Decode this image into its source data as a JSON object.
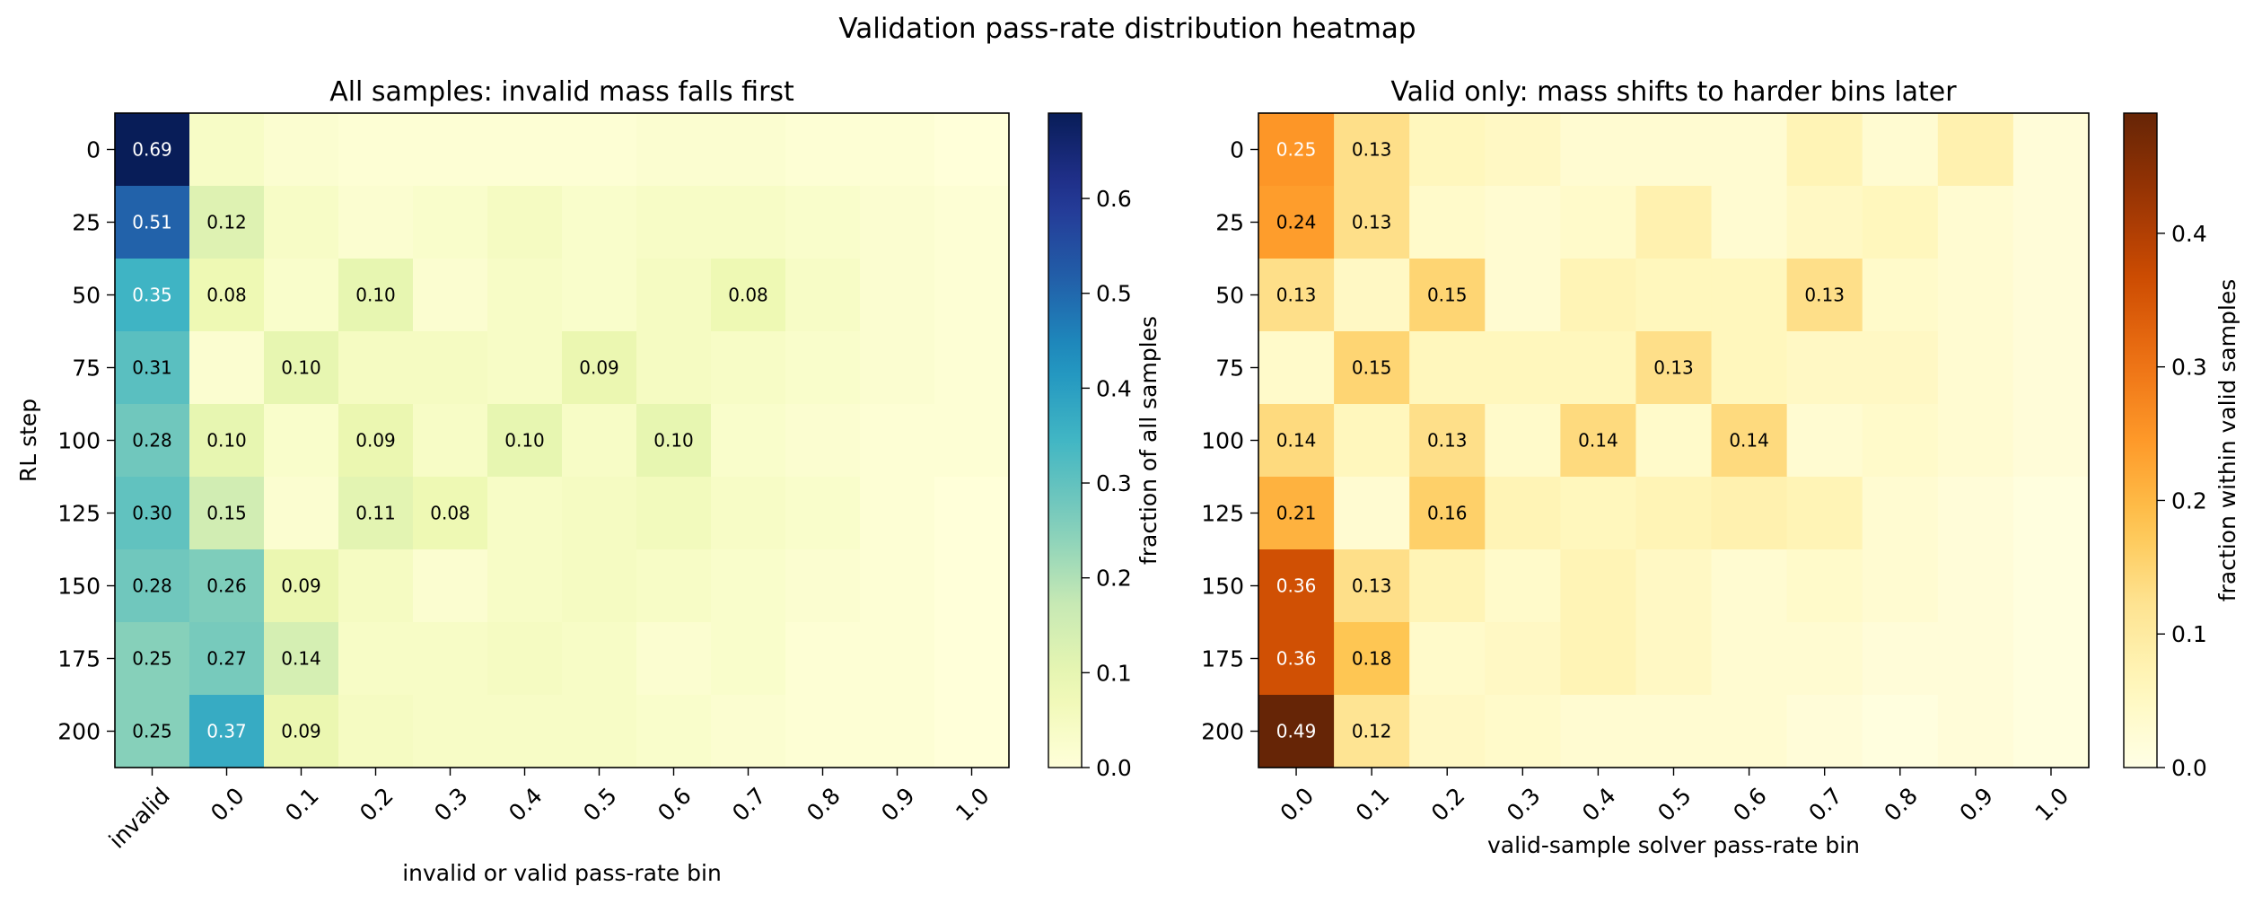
{
  "figure": {
    "suptitle": "Validation pass-rate distribution heatmap"
  },
  "chart_data": [
    {
      "type": "heatmap",
      "title": "All samples: invalid mass falls first",
      "xlabel": "invalid or valid pass-rate bin",
      "ylabel": "RL step",
      "x_categories": [
        "invalid",
        "0.0",
        "0.1",
        "0.2",
        "0.3",
        "0.4",
        "0.5",
        "0.6",
        "0.7",
        "0.8",
        "0.9",
        "1.0"
      ],
      "y_categories": [
        "0",
        "25",
        "50",
        "75",
        "100",
        "125",
        "150",
        "175",
        "200"
      ],
      "colormap": "YlGnBu",
      "colorbar": {
        "label": "fraction of all samples",
        "min": 0.0,
        "max": 0.69,
        "ticks": [
          "0.0",
          "0.1",
          "0.2",
          "0.3",
          "0.4",
          "0.5",
          "0.6"
        ]
      },
      "label_threshold": 0.075,
      "values": [
        [
          0.69,
          0.04,
          0.02,
          0.01,
          0.01,
          0.01,
          0.01,
          0.02,
          0.02,
          0.01,
          0.01,
          0.0
        ],
        [
          0.51,
          0.12,
          0.04,
          0.02,
          0.03,
          0.05,
          0.03,
          0.04,
          0.04,
          0.03,
          0.02,
          0.01
        ],
        [
          0.35,
          0.08,
          0.03,
          0.1,
          0.02,
          0.04,
          0.03,
          0.05,
          0.08,
          0.04,
          0.02,
          0.01
        ],
        [
          0.31,
          0.02,
          0.1,
          0.05,
          0.05,
          0.04,
          0.09,
          0.05,
          0.04,
          0.03,
          0.02,
          0.01
        ],
        [
          0.28,
          0.1,
          0.03,
          0.09,
          0.04,
          0.1,
          0.04,
          0.1,
          0.03,
          0.02,
          0.01,
          0.01
        ],
        [
          0.3,
          0.15,
          0.02,
          0.11,
          0.08,
          0.04,
          0.05,
          0.06,
          0.04,
          0.03,
          0.01,
          0.0
        ],
        [
          0.28,
          0.26,
          0.09,
          0.05,
          0.02,
          0.04,
          0.05,
          0.04,
          0.03,
          0.02,
          0.01,
          0.0
        ],
        [
          0.25,
          0.27,
          0.14,
          0.04,
          0.04,
          0.05,
          0.04,
          0.02,
          0.03,
          0.01,
          0.01,
          0.0
        ],
        [
          0.25,
          0.37,
          0.09,
          0.05,
          0.04,
          0.04,
          0.04,
          0.03,
          0.02,
          0.01,
          0.01,
          0.0
        ]
      ]
    },
    {
      "type": "heatmap",
      "title": "Valid only: mass shifts to harder bins later",
      "xlabel": "valid-sample solver pass-rate bin",
      "ylabel": "",
      "x_categories": [
        "0.0",
        "0.1",
        "0.2",
        "0.3",
        "0.4",
        "0.5",
        "0.6",
        "0.7",
        "0.8",
        "0.9",
        "1.0"
      ],
      "y_categories": [
        "0",
        "25",
        "50",
        "75",
        "100",
        "125",
        "150",
        "175",
        "200"
      ],
      "colormap": "YlOrBr",
      "colorbar": {
        "label": "fraction within valid samples",
        "min": 0.0,
        "max": 0.49,
        "ticks": [
          "0.0",
          "0.1",
          "0.2",
          "0.3",
          "0.4"
        ]
      },
      "label_threshold": 0.115,
      "values": [
        [
          0.25,
          0.13,
          0.06,
          0.05,
          0.03,
          0.03,
          0.03,
          0.07,
          0.03,
          0.08,
          0.02
        ],
        [
          0.24,
          0.13,
          0.04,
          0.03,
          0.04,
          0.08,
          0.03,
          0.05,
          0.06,
          0.03,
          0.02
        ],
        [
          0.13,
          0.05,
          0.15,
          0.03,
          0.07,
          0.06,
          0.06,
          0.13,
          0.04,
          0.03,
          0.02
        ],
        [
          0.04,
          0.15,
          0.06,
          0.06,
          0.06,
          0.13,
          0.06,
          0.05,
          0.05,
          0.03,
          0.02
        ],
        [
          0.14,
          0.06,
          0.13,
          0.04,
          0.14,
          0.04,
          0.14,
          0.03,
          0.04,
          0.03,
          0.02
        ],
        [
          0.21,
          0.03,
          0.16,
          0.07,
          0.06,
          0.07,
          0.08,
          0.07,
          0.03,
          0.02,
          0.01
        ],
        [
          0.36,
          0.13,
          0.07,
          0.04,
          0.07,
          0.05,
          0.03,
          0.04,
          0.03,
          0.02,
          0.01
        ],
        [
          0.36,
          0.18,
          0.04,
          0.05,
          0.07,
          0.05,
          0.03,
          0.03,
          0.02,
          0.02,
          0.01
        ],
        [
          0.49,
          0.12,
          0.05,
          0.04,
          0.03,
          0.03,
          0.03,
          0.02,
          0.01,
          0.02,
          0.01
        ]
      ]
    }
  ]
}
